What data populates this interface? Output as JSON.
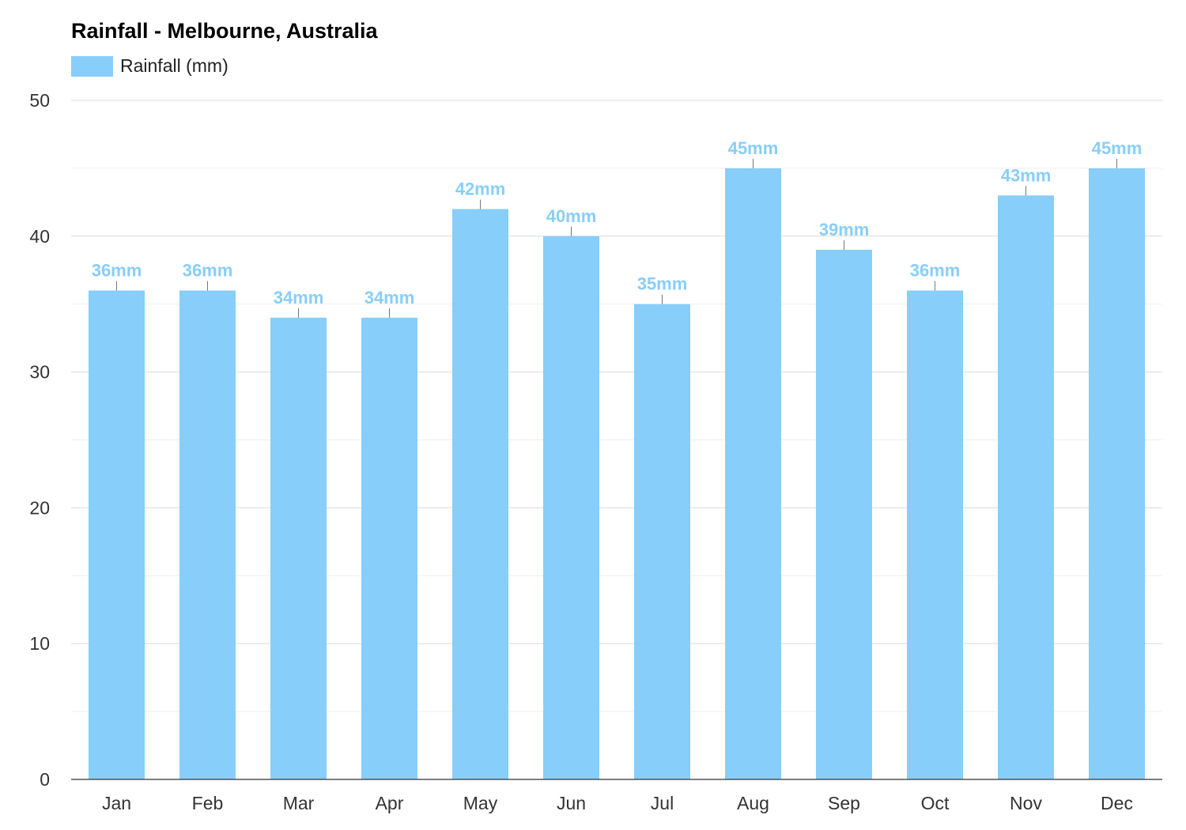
{
  "chart_data": {
    "type": "bar",
    "title": "Rainfall - Melbourne, Australia",
    "categories": [
      "Jan",
      "Feb",
      "Mar",
      "Apr",
      "May",
      "Jun",
      "Jul",
      "Aug",
      "Sep",
      "Oct",
      "Nov",
      "Dec"
    ],
    "series": [
      {
        "name": "Rainfall (mm)",
        "values": [
          36,
          36,
          34,
          34,
          42,
          40,
          35,
          45,
          39,
          36,
          43,
          45
        ],
        "color": "#87cefa"
      }
    ],
    "data_labels": [
      "36mm",
      "36mm",
      "34mm",
      "34mm",
      "42mm",
      "40mm",
      "35mm",
      "45mm",
      "39mm",
      "36mm",
      "43mm",
      "45mm"
    ],
    "y_ticks": [
      "0",
      "10",
      "20",
      "30",
      "40",
      "50"
    ],
    "ylim": [
      0,
      50
    ],
    "grid": true,
    "legend_position": "top-left",
    "xlabel": "",
    "ylabel": ""
  }
}
